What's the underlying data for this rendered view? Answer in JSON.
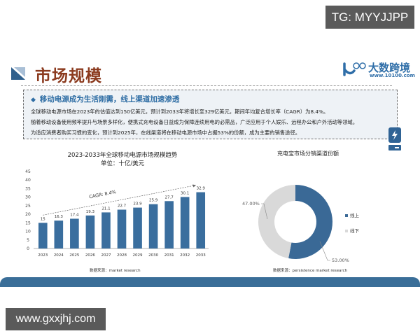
{
  "watermarks": {
    "top_right": "TG: MYYJJPP",
    "bottom_left": "www.gxxjhj.com"
  },
  "header": {
    "title": "市场规模",
    "logo_text": "大数跨境",
    "logo_url": "www.10100.com",
    "logo_mark": "100"
  },
  "summary": {
    "heading": "移动电源成为生活刚需，线上渠道加速渗透",
    "bullet_icon": "diamond-icon",
    "lines": [
      "全球移动电源市场在2023年的估值达到150亿美元，预计到2033年将增长至329亿美元，期间年均复合增长率（CAGR）为8.4%。",
      "随着移动设备使用频率提升与场景多样化，便携式充电设备日益成为保障连续用电的必需品，广泛应用于个人娱乐、远程办公和户外活动等领域。",
      "为适应消费者购买习惯的变化，预计到2025年，在线渠道将在移动电源市场中占据53%的份额，成为主要的销售途径。"
    ]
  },
  "side_badge_icon": "lightning-icon",
  "colors": {
    "bar": "#3a6e9e",
    "pie_online": "#3a6996",
    "pie_offline": "#d9d9d9",
    "title": "#8b3a1e",
    "accent": "#2e6da4",
    "footer": "#3a6e98"
  },
  "sources": {
    "left": "数据来源：market research",
    "right": "数据来源：persistence market research"
  },
  "chart_data": [
    {
      "type": "bar",
      "title": "2023-2033年全球移动电源市场规模趋势",
      "subtitle": "单位：十亿/美元",
      "categories": [
        "2023",
        "2024",
        "2025",
        "2026",
        "2027",
        "2028",
        "2029",
        "2030",
        "2031",
        "2032",
        "2033"
      ],
      "values": [
        15,
        16.3,
        17.4,
        19.3,
        21.1,
        22.7,
        23.9,
        25.9,
        27.7,
        30.1,
        32.9
      ],
      "xlabel": "",
      "ylabel": "",
      "ylim": [
        0,
        45
      ],
      "yticks": [
        0,
        5,
        10,
        15,
        20,
        25,
        30,
        35,
        40,
        45
      ],
      "grid": false,
      "annotation": "CAGR: 8.4%",
      "source": "数据来源：market research"
    },
    {
      "type": "pie",
      "title": "充电宝市场分销渠道份额",
      "style": "donut",
      "categories": [
        "线上",
        "线下"
      ],
      "values": [
        53.0,
        47.0
      ],
      "labels": [
        "53.00%",
        "47.00%"
      ],
      "legend_position": "right",
      "source": "数据来源：persistence market research"
    }
  ]
}
